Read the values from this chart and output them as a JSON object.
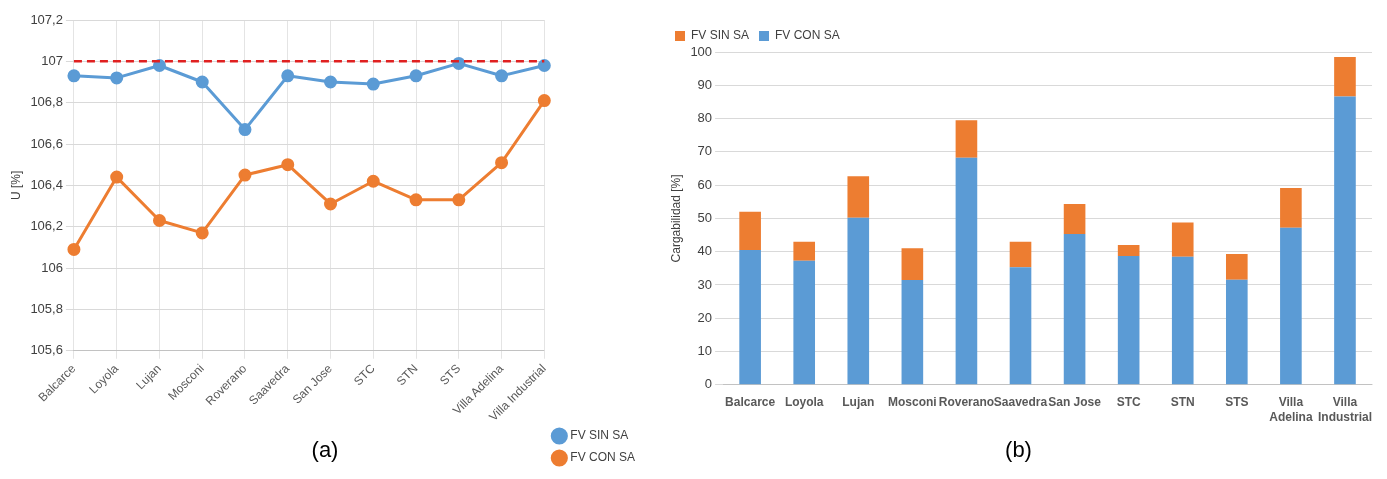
{
  "chart_data": [
    {
      "type": "line",
      "title": "(a)",
      "ylabel": "U [%]",
      "categories": [
        "Balcarce",
        "Loyola",
        "Lujan",
        "Mosconi",
        "Roverano",
        "Saavedra",
        "San Jose",
        "STC",
        "STN",
        "STS",
        "Villa Adelina",
        "Villa Industrial"
      ],
      "series": [
        {
          "name": "FV SIN SA",
          "color": "#5b9bd5",
          "values": [
            106.93,
            106.92,
            106.98,
            106.9,
            106.67,
            106.93,
            106.9,
            106.89,
            106.93,
            106.99,
            106.93,
            106.98
          ]
        },
        {
          "name": "FV CON SA",
          "color": "#ed7d31",
          "values": [
            106.09,
            106.44,
            106.23,
            106.17,
            106.45,
            106.5,
            106.31,
            106.42,
            106.33,
            106.33,
            106.51,
            106.81
          ]
        }
      ],
      "ylim": [
        105.6,
        107.2
      ],
      "yticks": [
        {
          "value": 105.6,
          "label": "105,6"
        },
        {
          "value": 105.8,
          "label": "105,8"
        },
        {
          "value": 106,
          "label": "106"
        },
        {
          "value": 106.2,
          "label": "106,2"
        },
        {
          "value": 106.4,
          "label": "106,4"
        },
        {
          "value": 106.6,
          "label": "106,6"
        },
        {
          "value": 106.8,
          "label": "106,8"
        },
        {
          "value": 107,
          "label": "107"
        },
        {
          "value": 107.2,
          "label": "107,2"
        }
      ],
      "ref_lines": [
        {
          "axis": "y",
          "value": 107,
          "color": "#e02020",
          "line_style": "dashed"
        }
      ],
      "grid": true,
      "legend": "bottom right",
      "marker": "circle",
      "line_style": "solid"
    },
    {
      "type": "bar",
      "title": "(b)",
      "ylabel": "Cargabilidad [%]",
      "stacked": true,
      "categories": [
        "Balcarce",
        "Loyola",
        "Lujan",
        "Mosconi",
        "Roverano",
        "Saavedra",
        "San Jose",
        "STC",
        "STN",
        "STS",
        "Villa Adelina",
        "Villa Industrial"
      ],
      "series": [
        {
          "name": "FV CON SA",
          "color": "#5b9bd5",
          "values": [
            40.5,
            37.3,
            50.2,
            31.5,
            68.2,
            35.3,
            45.3,
            38.7,
            38.5,
            31.6,
            47.2,
            86.6
          ]
        },
        {
          "name": "FV SIN SA",
          "color": "#ed7d31",
          "values": [
            11.5,
            5.7,
            12.5,
            9.5,
            11.3,
            7.7,
            9,
            3.3,
            10.3,
            7.7,
            11.9,
            11.9
          ]
        }
      ],
      "ylim": [
        0,
        100
      ],
      "yticks": [
        0,
        10,
        20,
        30,
        40,
        50,
        60,
        70,
        80,
        90,
        100
      ],
      "grid": "y",
      "legend": "top left"
    }
  ]
}
